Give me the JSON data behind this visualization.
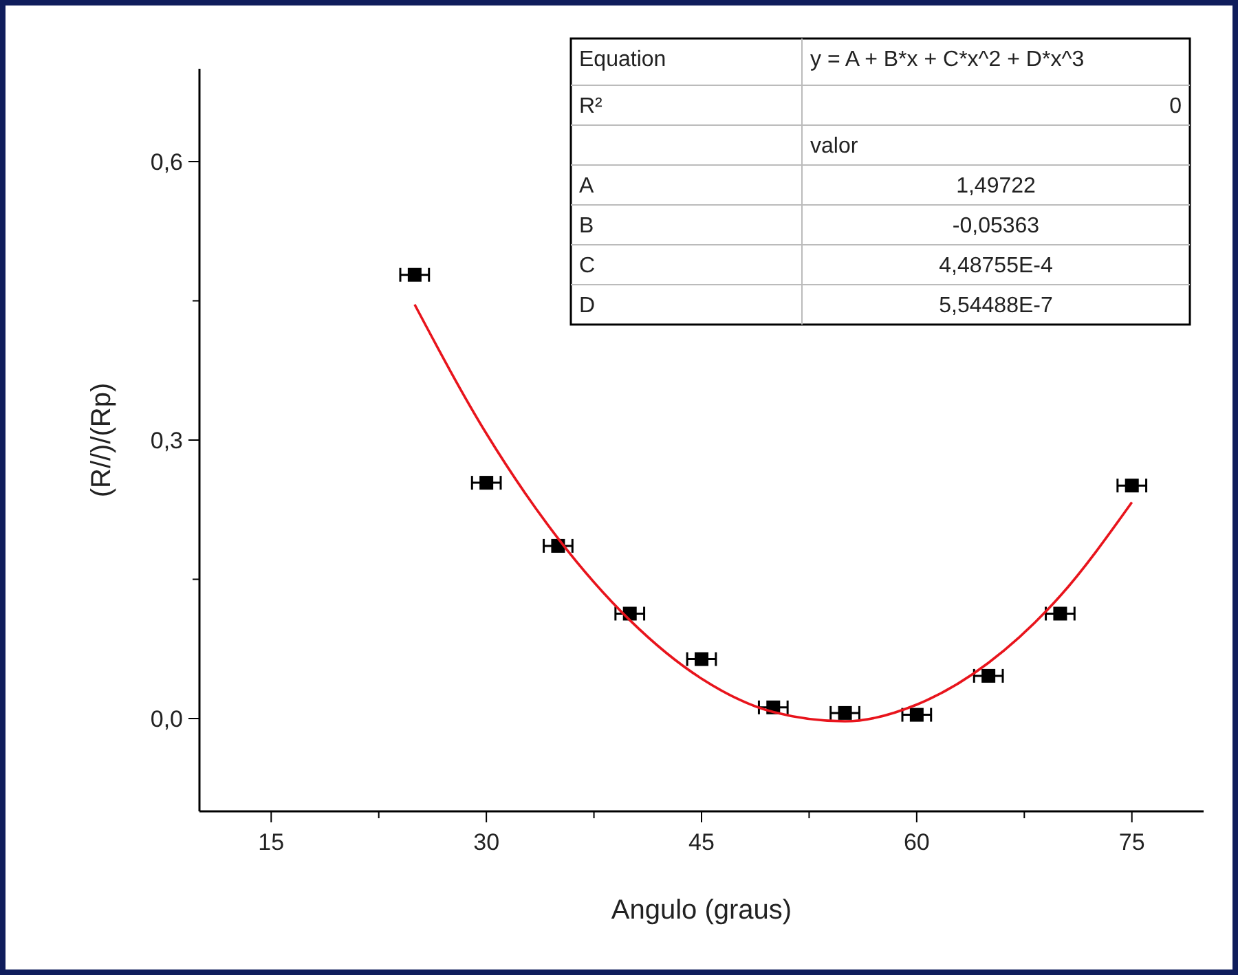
{
  "chart_data": {
    "type": "scatter",
    "xlabel": "Angulo (graus)",
    "ylabel": "(R//)/(Rp)",
    "xlim": [
      10,
      80
    ],
    "xticks": [
      15,
      {
        "value": 22.5,
        "label": null
      },
      30,
      {
        "value": 37.5,
        "label": null
      },
      45,
      {
        "value": 52.5,
        "label": null
      },
      60,
      {
        "value": 67.5,
        "label": null
      },
      75
    ],
    "ylim": [
      -0.1,
      0.7
    ],
    "yticks": [
      {
        "value": 0,
        "label": "0,0"
      },
      {
        "value": 0.15,
        "label": null
      },
      {
        "value": 0.3,
        "label": "0,3"
      },
      {
        "value": 0.45,
        "label": null
      },
      {
        "value": 0.6,
        "label": "0,6"
      }
    ],
    "grid": false,
    "series": [
      {
        "color": "#000000",
        "marker": "square",
        "x": [
          25,
          30,
          35,
          40,
          45,
          50,
          55,
          60,
          65,
          70,
          75
        ],
        "values": [
          0.478,
          0.254,
          0.186,
          0.113,
          0.064,
          0.012,
          0.006,
          0.004,
          0.046,
          0.113,
          0.251
        ],
        "xerrors": [
          1,
          1,
          1,
          1,
          1,
          1,
          1,
          1,
          1,
          1,
          1
        ]
      },
      {
        "type": "line",
        "color": "#e8141c",
        "line_style": "solid",
        "x": [
          25,
          30,
          35,
          40,
          45,
          50,
          55,
          60,
          65,
          70,
          75
        ],
        "values": [
          0.446,
          0.307,
          0.194,
          0.106,
          0.043,
          0.007,
          -0.003,
          0.015,
          0.06,
          0.132,
          0.233
        ]
      }
    ],
    "annotations": [
      "Equation",
      "y = A + B*x + C*x^2 + D*x^3",
      "R²",
      "0",
      "valor",
      "A",
      "1,49722",
      "B",
      "-0,05363",
      "C",
      "4,48755E-4",
      "D",
      "5,54488E-7"
    ]
  }
}
